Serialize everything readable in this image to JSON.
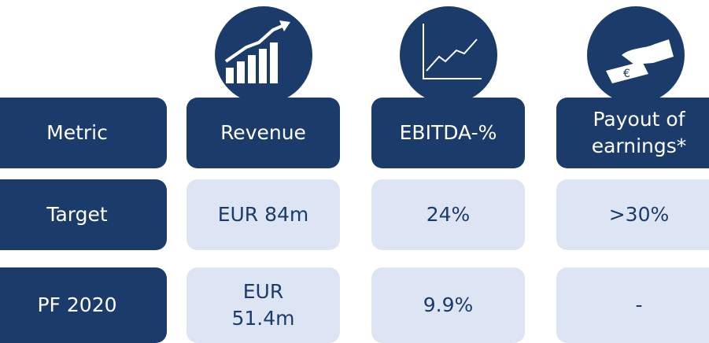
{
  "header": [
    "Metric",
    "Revenue",
    "EBITDA-%",
    "Payout of earnings*"
  ],
  "rows": [
    [
      "Target",
      "EUR 84m",
      "24%",
      ">30%"
    ],
    [
      "PF 2020",
      "EUR 51.4m",
      "9.9%",
      "-"
    ]
  ]
}
